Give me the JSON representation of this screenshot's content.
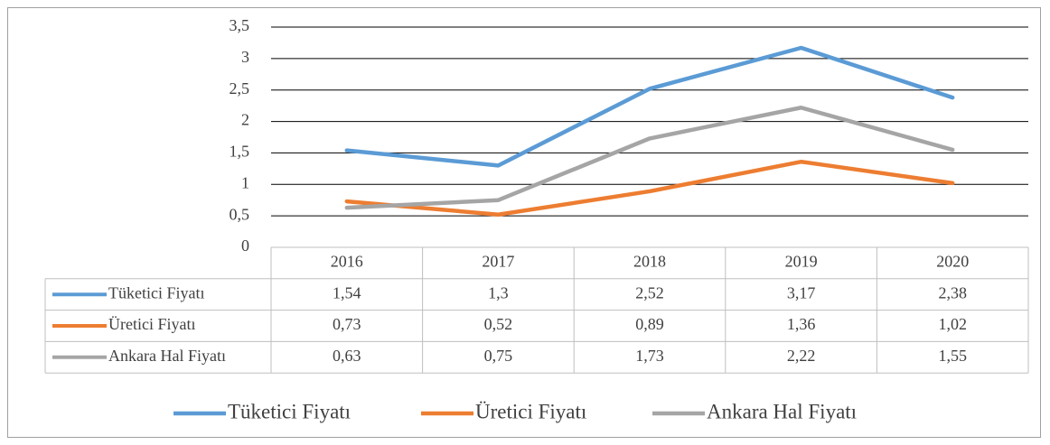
{
  "chart_data": {
    "type": "line",
    "categories": [
      "2016",
      "2017",
      "2018",
      "2019",
      "2020"
    ],
    "series": [
      {
        "name": "Tüketici Fiyatı",
        "color": "#5b9bd5",
        "values": [
          1.54,
          1.3,
          2.52,
          3.17,
          2.38
        ],
        "value_labels": [
          "1,54",
          "1,3",
          "2,52",
          "3,17",
          "2,38"
        ]
      },
      {
        "name": "Üretici Fiyatı",
        "color": "#ed7d31",
        "values": [
          0.73,
          0.52,
          0.89,
          1.36,
          1.02
        ],
        "value_labels": [
          "0,73",
          "0,52",
          "0,89",
          "1,36",
          "1,02"
        ]
      },
      {
        "name": "Ankara Hal Fiyatı",
        "color": "#a5a5a5",
        "values": [
          0.63,
          0.75,
          1.73,
          2.22,
          1.55
        ],
        "value_labels": [
          "0,63",
          "0,75",
          "1,73",
          "2,22",
          "1,55"
        ]
      }
    ],
    "ylim": [
      0,
      3.5
    ],
    "yticks": [
      0,
      {
        "value": 0.5,
        "label": "0,5"
      },
      1,
      {
        "value": 1.5,
        "label": "1,5"
      },
      2,
      {
        "value": 2.5,
        "label": "2,5"
      },
      3,
      {
        "value": 3.5,
        "label": "3,5"
      }
    ],
    "grid": true,
    "legend": "bottom"
  }
}
